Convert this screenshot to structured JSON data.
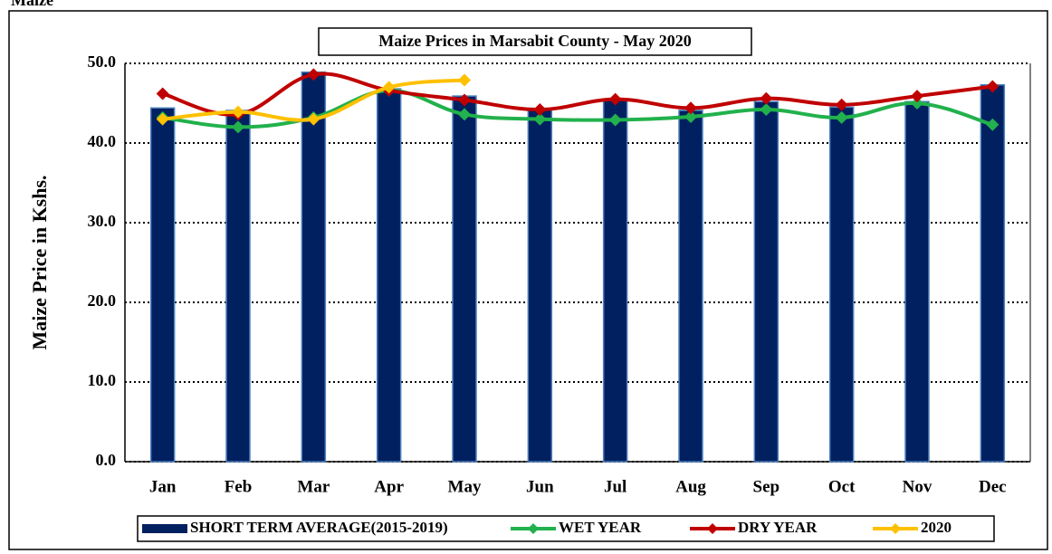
{
  "header": "Maize",
  "chart_data": {
    "type": "bar_line",
    "title": "Maize Prices in Marsabit County - May 2020",
    "y_label": "Maize Price in Kshs.",
    "categories": [
      "Jan",
      "Feb",
      "Mar",
      "Apr",
      "May",
      "Jun",
      "Jul",
      "Aug",
      "Sep",
      "Oct",
      "Nov",
      "Dec"
    ],
    "series": [
      {
        "name": "SHORT TERM AVERAGE(2015-2019)",
        "kind": "bar",
        "color": "#002060",
        "values": [
          44.4,
          44.1,
          48.9,
          46.8,
          45.9,
          44.3,
          45.5,
          44.1,
          45.2,
          44.5,
          45.2,
          47.3
        ]
      },
      {
        "name": "WET YEAR",
        "kind": "line",
        "color": "#22b14c",
        "values": [
          43.2,
          42.0,
          43.2,
          46.6,
          43.6,
          43.0,
          42.9,
          43.3,
          44.2,
          43.2,
          45.0,
          42.3
        ]
      },
      {
        "name": "DRY YEAR",
        "kind": "line",
        "color": "#c00000",
        "values": [
          46.2,
          43.6,
          48.6,
          46.6,
          45.4,
          44.2,
          45.5,
          44.4,
          45.6,
          44.8,
          45.9,
          47.1
        ]
      },
      {
        "name": "2020",
        "kind": "line",
        "color": "#ffc000",
        "values": [
          43.0,
          43.9,
          43.0,
          47.0,
          47.9,
          null,
          null,
          null,
          null,
          null,
          null,
          null
        ]
      }
    ],
    "ylim": [
      0,
      50
    ],
    "yticks": [
      {
        "value": 0,
        "label": "0.0"
      },
      {
        "value": 10,
        "label": "10.0"
      },
      {
        "value": 20,
        "label": "20.0"
      },
      {
        "value": 30,
        "label": "30.0"
      },
      {
        "value": 40,
        "label": "40.0"
      },
      {
        "value": 50,
        "label": "50.0"
      }
    ],
    "grid": true,
    "legend": "bottom"
  }
}
